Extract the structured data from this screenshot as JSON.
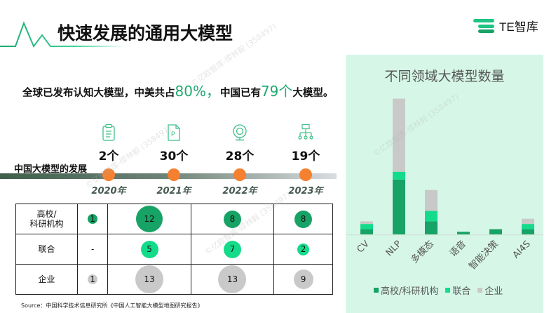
{
  "header": {
    "title": "快速发展的通用大模型",
    "logo_text": "TE智库"
  },
  "summary": {
    "part1": "全球已发布认知大模型，中美共占",
    "pct": "80%",
    "part2": "，",
    "part3": "中国已有",
    "count": "79个",
    "part4": "大模型。"
  },
  "timeline": {
    "label": "中国大模型的发展",
    "years": [
      {
        "year": "2020年",
        "count": "2个",
        "icon": "clipboard-icon"
      },
      {
        "year": "2021年",
        "count": "30个",
        "icon": "document-p-icon"
      },
      {
        "year": "2022年",
        "count": "28个",
        "icon": "webcam-icon"
      },
      {
        "year": "2023年",
        "count": "19个",
        "icon": "org-chart-icon"
      }
    ]
  },
  "table": {
    "rows": [
      {
        "label": "高校/\n科研机构",
        "label_line1": "高校/",
        "label_line2": "科研机构",
        "values": [
          "1",
          "12",
          "8",
          "8"
        ],
        "color": "#17a266"
      },
      {
        "label": "联合",
        "values": [
          "-",
          "5",
          "7",
          "2"
        ],
        "color": "#14db8a"
      },
      {
        "label": "企业",
        "values": [
          "1",
          "13",
          "13",
          "9"
        ],
        "color": "#c9c9c9"
      }
    ]
  },
  "source": "Source：中国科学技术信息研究所《中国人工智能大模型地图研究报告》",
  "colors": {
    "accent_green": "#1fa872",
    "dark_green": "#17a266",
    "light_green": "#14db8a",
    "grey": "#c9c9c9",
    "orange": "#f5802f",
    "panel_bg": "#d6f7e8"
  },
  "chart_data": {
    "type": "bar",
    "stacked": true,
    "title": "不同领域大模型数量",
    "categories": [
      "CV",
      "NLP",
      "多模态",
      "语音",
      "智能决策",
      "AI4S"
    ],
    "series": [
      {
        "name": "高校/科研机构",
        "color": "#17a266",
        "values": [
          2,
          21,
          5,
          1,
          2,
          2
        ]
      },
      {
        "name": "联合",
        "color": "#14db8a",
        "values": [
          2,
          3,
          4,
          0,
          0,
          2
        ]
      },
      {
        "name": "企业",
        "color": "#c9c9c9",
        "values": [
          1,
          28,
          8,
          0,
          0,
          2
        ]
      }
    ],
    "xlabel": "",
    "ylabel": "",
    "grid": false,
    "legend_position": "bottom",
    "legend": [
      "高校/科研机构",
      "联合",
      "企业"
    ]
  },
  "watermark": "©亿欧智库-缪林毅 (358497)"
}
